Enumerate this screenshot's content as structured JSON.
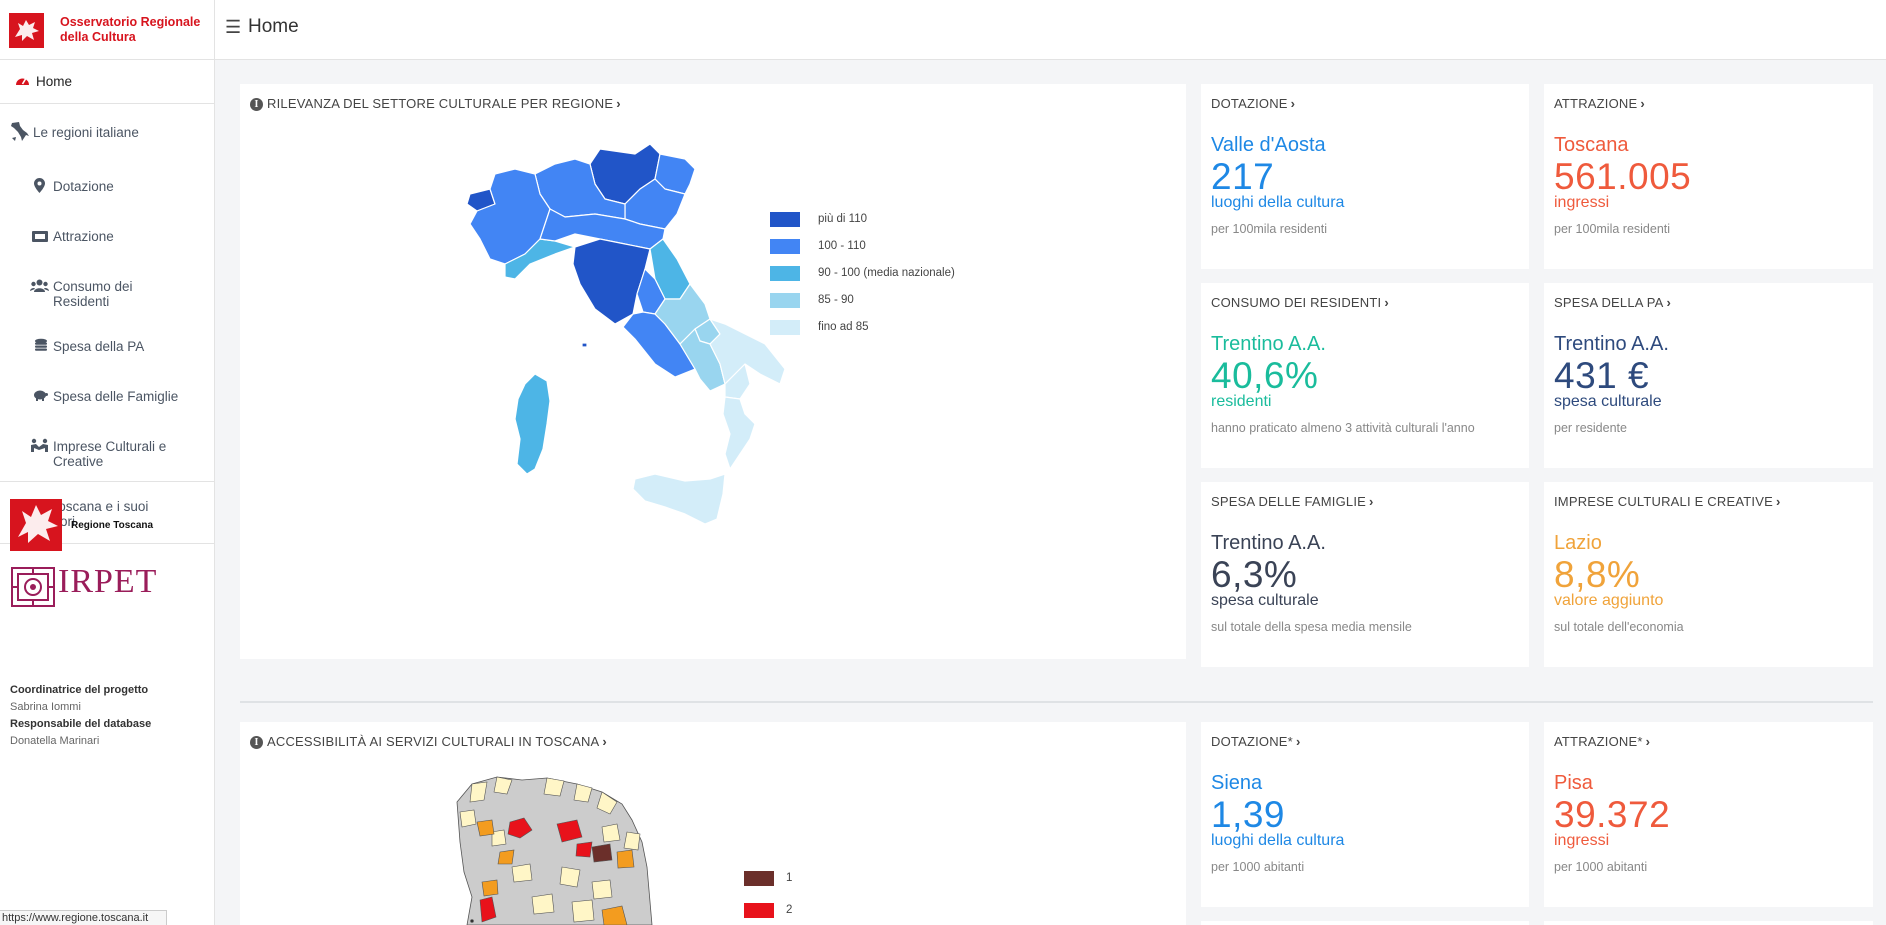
{
  "header": {
    "app_name": "Osservatorio Regionale della Cultura",
    "page_title": "Home"
  },
  "sidebar": {
    "items": [
      {
        "label": "Home",
        "icon": "dashboard-icon"
      },
      {
        "label": "Le regioni italiane",
        "icon": "italy-icon"
      },
      {
        "label": "Dotazione",
        "icon": "map-pin-icon"
      },
      {
        "label": "Attrazione",
        "icon": "ticket-icon"
      },
      {
        "label": "Consumo dei Residenti",
        "icon": "users-icon"
      },
      {
        "label": "Spesa della PA",
        "icon": "coins-icon"
      },
      {
        "label": "Spesa delle Famiglie",
        "icon": "piggy-bank-icon"
      },
      {
        "label": "Imprese Culturali e Creative",
        "icon": "handshake-icon"
      },
      {
        "label": "La Toscana e i suoi territori",
        "icon": "tuscany-icon"
      }
    ],
    "partner_regione": "Regione Toscana",
    "partner_irpet": "IRPET",
    "credits": [
      {
        "role": "Coordinatrice del progetto",
        "name": "Sabrina Iommi"
      },
      {
        "role": "Responsabile del database",
        "name": "Donatella Marinari"
      }
    ]
  },
  "status_url": "https://www.regione.toscana.it",
  "map_national": {
    "title": "RILEVANZA DEL SETTORE CULTURALE PER REGIONE",
    "legend": [
      {
        "label": "più di 110",
        "color": "#2155c8"
      },
      {
        "label": "100 - 110",
        "color": "#4285f4"
      },
      {
        "label": "90 - 100 (media nazionale)",
        "color": "#4db5e6"
      },
      {
        "label": "85 - 90",
        "color": "#99d5ef"
      },
      {
        "label": "fino ad 85",
        "color": "#d3edf9"
      }
    ]
  },
  "cards": [
    {
      "title": "DOTAZIONE",
      "region": "Valle d'Aosta",
      "value": "217",
      "unit": "luoghi della cultura",
      "note": "per 100mila residenti",
      "color": "#1e88e5"
    },
    {
      "title": "ATTRAZIONE",
      "region": "Toscana",
      "value": "561.005",
      "unit": "ingressi",
      "note": "per 100mila residenti",
      "color": "#ef5a3c"
    },
    {
      "title": "CONSUMO DEI RESIDENTI",
      "region": "Trentino A.A.",
      "value": "40,6%",
      "unit": "residenti",
      "note": "hanno praticato almeno 3 attività culturali l'anno",
      "color": "#1abc9c"
    },
    {
      "title": "SPESA DELLA PA",
      "region": "Trentino A.A.",
      "value": "431 €",
      "unit": "spesa culturale",
      "note": "per residente",
      "color": "#2e4a7d"
    },
    {
      "title": "SPESA DELLE FAMIGLIE",
      "region": "Trentino A.A.",
      "value": "6,3%",
      "unit": "spesa culturale",
      "note": "sul totale della spesa media mensile",
      "color": "#3a4356"
    },
    {
      "title": "IMPRESE CULTURALI E CREATIVE",
      "region": "Lazio",
      "value": "8,8%",
      "unit": "valore aggiunto",
      "note": "sul totale dell'economia",
      "color": "#f0a33a"
    }
  ],
  "map_toscana": {
    "title": "ACCESSIBILITÀ AI SERVIZI CULTURALI IN TOSCANA",
    "legend": [
      {
        "label": "1",
        "color": "#6b2f2a"
      },
      {
        "label": "2",
        "color": "#e8121b"
      }
    ]
  },
  "cards_toscana": [
    {
      "title": "DOTAZIONE*",
      "region": "Siena",
      "value": "1,39",
      "unit": "luoghi della cultura",
      "note": "per 1000 abitanti",
      "color": "#1e88e5"
    },
    {
      "title": "ATTRAZIONE*",
      "region": "Pisa",
      "value": "39.372",
      "unit": "ingressi",
      "note": "per 1000 abitanti",
      "color": "#ef5a3c"
    }
  ]
}
